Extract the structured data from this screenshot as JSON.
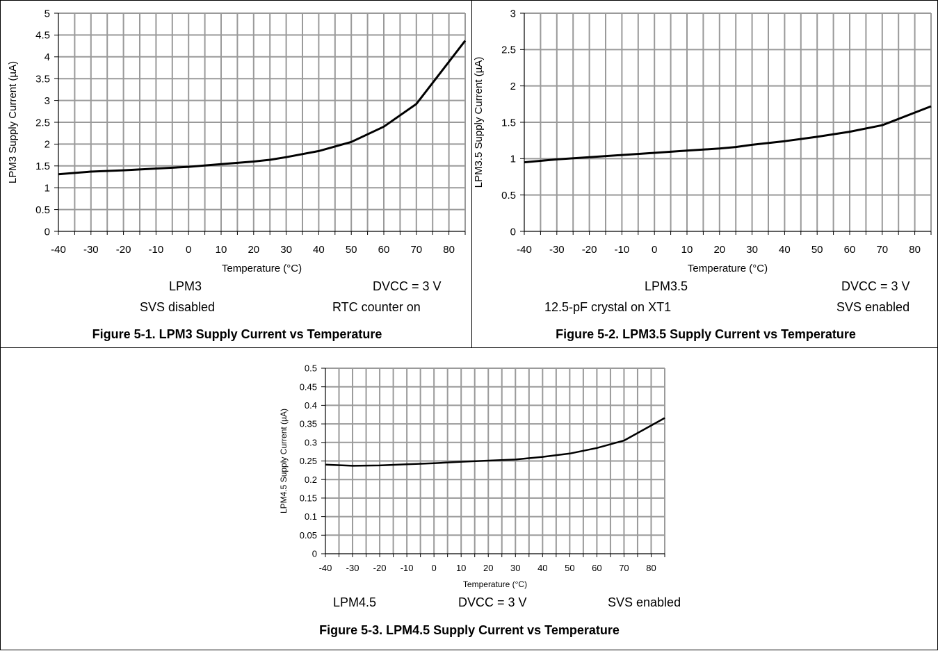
{
  "chart_data": [
    {
      "type": "line",
      "title": "Figure 5-1. LPM3 Supply Current vs Temperature",
      "xlabel": "Temperature (°C)",
      "ylabel": "LPM3 Supply Current (µA)",
      "xlim": [
        -40,
        85
      ],
      "ylim": [
        0,
        5
      ],
      "xticks": [
        -40,
        -30,
        -20,
        -10,
        0,
        10,
        20,
        30,
        40,
        50,
        60,
        70,
        80
      ],
      "xtick_labels": [
        "-40",
        "-30",
        "-20",
        "-10",
        "0",
        "10",
        "20",
        "30",
        "40",
        "50",
        "60",
        "70",
        "80"
      ],
      "yticks": [
        0,
        0.5,
        1,
        1.5,
        2,
        2.5,
        3,
        3.5,
        4,
        4.5,
        5
      ],
      "ytick_labels": [
        "0",
        "0.5",
        "1",
        "1.5",
        "2",
        "2.5",
        "3",
        "3.5",
        "4",
        "4.5",
        "5"
      ],
      "grid": true,
      "conditions": [
        "LPM3",
        "DVCC = 3 V",
        "SVS disabled",
        "RTC counter on"
      ],
      "x": [
        -40,
        -30,
        -20,
        -10,
        0,
        10,
        20,
        25,
        30,
        40,
        50,
        60,
        70,
        85
      ],
      "series": [
        {
          "values": [
            1.31,
            1.37,
            1.4,
            1.44,
            1.48,
            1.54,
            1.6,
            1.64,
            1.7,
            1.84,
            2.05,
            2.4,
            2.92,
            4.37
          ]
        }
      ]
    },
    {
      "type": "line",
      "title": "Figure 5-2. LPM3.5 Supply Current vs Temperature",
      "xlabel": "Temperature (°C)",
      "ylabel": "LPM3.5 Supply Current (µA)",
      "xlim": [
        -40,
        85
      ],
      "ylim": [
        0,
        3
      ],
      "xticks": [
        -40,
        -30,
        -20,
        -10,
        0,
        10,
        20,
        30,
        40,
        50,
        60,
        70,
        80
      ],
      "xtick_labels": [
        "-40",
        "-30",
        "-20",
        "-10",
        "0",
        "10",
        "20",
        "30",
        "40",
        "50",
        "60",
        "70",
        "80"
      ],
      "yticks": [
        0,
        0.5,
        1,
        1.5,
        2,
        2.5,
        3
      ],
      "ytick_labels": [
        "0",
        "0.5",
        "1",
        "1.5",
        "2",
        "2.5",
        "3"
      ],
      "grid": true,
      "conditions": [
        "LPM3.5",
        "DVCC = 3 V",
        "12.5-pF crystal on XT1",
        "SVS enabled"
      ],
      "x": [
        -40,
        -30,
        -20,
        -10,
        0,
        10,
        20,
        25,
        30,
        40,
        50,
        60,
        70,
        85
      ],
      "series": [
        {
          "values": [
            0.95,
            0.99,
            1.02,
            1.05,
            1.08,
            1.11,
            1.14,
            1.16,
            1.19,
            1.24,
            1.3,
            1.37,
            1.46,
            1.72
          ]
        }
      ]
    },
    {
      "type": "line",
      "title": "Figure 5-3. LPM4.5 Supply Current vs Temperature",
      "xlabel": "Temperature (°C)",
      "ylabel": "LPM4.5 Supply Current (µA)",
      "xlim": [
        -40,
        85
      ],
      "ylim": [
        0,
        0.5
      ],
      "xticks": [
        -40,
        -30,
        -20,
        -10,
        0,
        10,
        20,
        30,
        40,
        50,
        60,
        70,
        80
      ],
      "xtick_labels": [
        "-40",
        "-30",
        "-20",
        "-10",
        "0",
        "10",
        "20",
        "30",
        "40",
        "50",
        "60",
        "70",
        "80"
      ],
      "yticks": [
        0,
        0.05,
        0.1,
        0.15,
        0.2,
        0.25,
        0.3,
        0.35,
        0.4,
        0.45,
        0.5
      ],
      "ytick_labels": [
        "0",
        "0.05",
        "0.1",
        "0.15",
        "0.2",
        "0.25",
        "0.3",
        "0.35",
        "0.4",
        "0.45",
        "0.5"
      ],
      "grid": true,
      "conditions": [
        "LPM4.5",
        "DVCC = 3 V",
        "SVS enabled"
      ],
      "x": [
        -40,
        -30,
        -20,
        -10,
        0,
        10,
        20,
        30,
        40,
        50,
        60,
        70,
        85
      ],
      "series": [
        {
          "values": [
            0.24,
            0.237,
            0.238,
            0.241,
            0.244,
            0.248,
            0.251,
            0.254,
            0.261,
            0.27,
            0.285,
            0.305,
            0.366
          ]
        }
      ]
    }
  ],
  "colors": {
    "grid": "#9a9a9a",
    "line": "#000000",
    "axis": "#000000"
  }
}
